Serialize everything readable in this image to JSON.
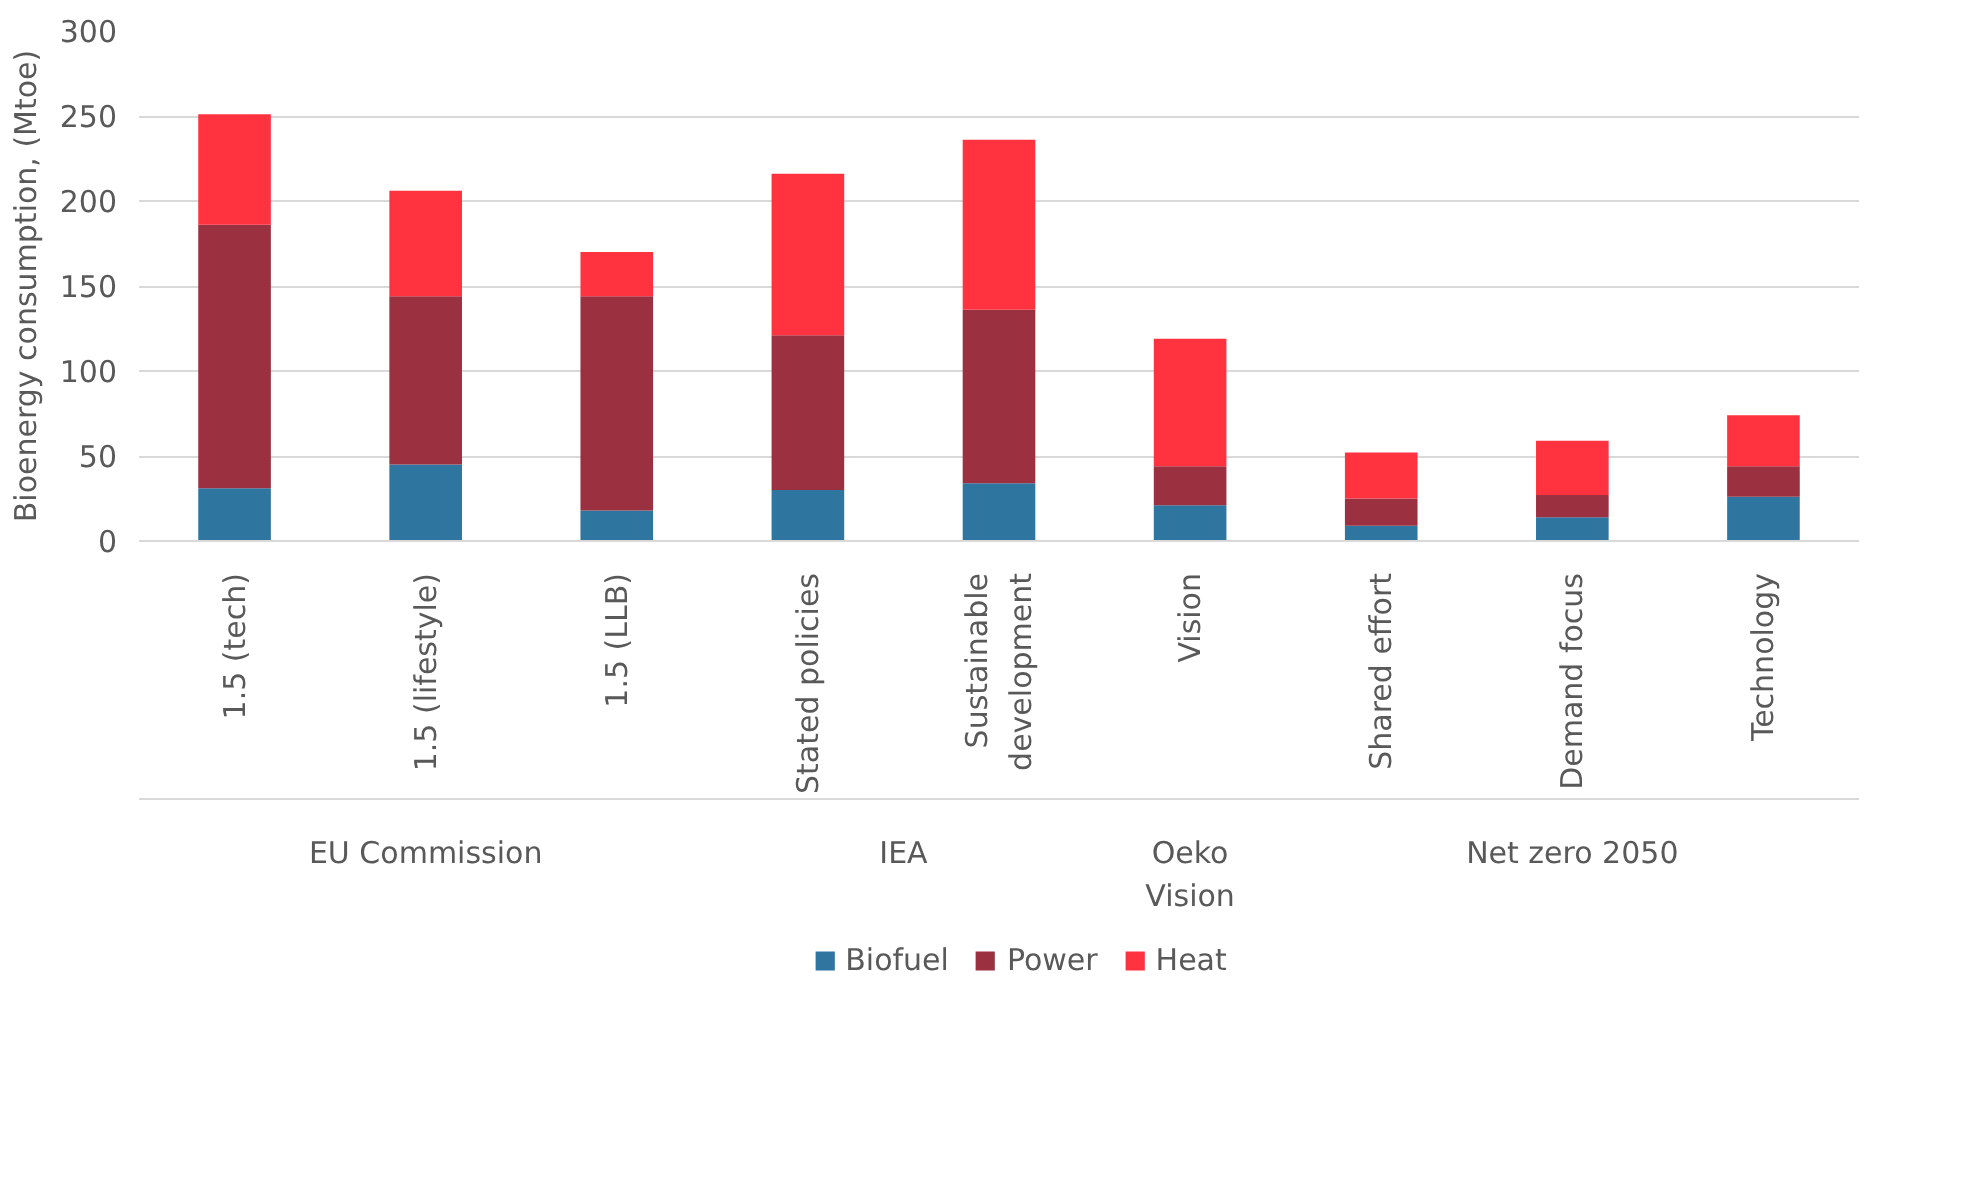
{
  "chart_data": {
    "type": "bar",
    "stacked": true,
    "ylabel": "Bioenergy consumption, (Mtoe)",
    "categories": [
      "1.5 (tech)",
      "1.5 (lifestyle)",
      "1.5 (LLB)",
      "Stated policies",
      "Sustainable development",
      "Vision",
      "Shared effort",
      "Demand focus",
      "Technology"
    ],
    "series": [
      {
        "name": "Biofuel",
        "color": "#2e75a0",
        "values": [
          31,
          45,
          18,
          30,
          34,
          21,
          9,
          14,
          26
        ]
      },
      {
        "name": "Power",
        "color": "#9b3040",
        "values": [
          155,
          99,
          126,
          91,
          102,
          23,
          16,
          13,
          18
        ]
      },
      {
        "name": "Heat",
        "color": "#ff3340",
        "values": [
          65,
          62,
          26,
          95,
          100,
          75,
          27,
          32,
          30
        ]
      }
    ],
    "annotations": [
      "EU Commission",
      "IEA",
      "Oeko Vision",
      "Net zero 2050"
    ],
    "ylim": [
      0,
      300
    ],
    "yticks": [
      0,
      50,
      100,
      150,
      200,
      250,
      300
    ],
    "grid": "y",
    "legend": "bottom"
  }
}
